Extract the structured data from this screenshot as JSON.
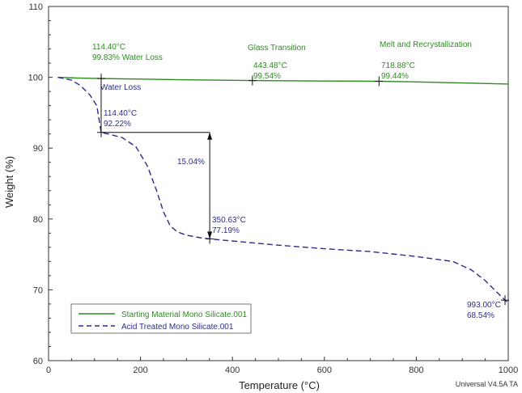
{
  "chart_data": {
    "type": "line",
    "xlabel": "Temperature (°C)",
    "ylabel": "Weight (%)",
    "xlim": [
      0,
      1000
    ],
    "ylim": [
      60,
      110
    ],
    "x_ticks": [
      "0",
      "200",
      "400",
      "600",
      "800",
      "1000"
    ],
    "y_ticks": [
      "60",
      "70",
      "80",
      "90",
      "100",
      "110"
    ],
    "grid": false,
    "legend_position": "bottom-left",
    "series": [
      {
        "name": "Starting Material Mono Silicate.001",
        "color": "#2e8b22",
        "style": "solid",
        "x": [
          20,
          60,
          114.4,
          200,
          300,
          443.48,
          500,
          600,
          718.88,
          800,
          900,
          1000
        ],
        "y": [
          100.0,
          99.9,
          99.83,
          99.75,
          99.65,
          99.54,
          99.52,
          99.48,
          99.44,
          99.35,
          99.2,
          99.05
        ]
      },
      {
        "name": "Acid Treated Mono Silicate.001",
        "color": "#2c2c8a",
        "style": "dashed",
        "x": [
          20,
          50,
          70,
          90,
          105,
          114.4,
          130,
          160,
          190,
          215,
          235,
          250,
          265,
          280,
          300,
          330,
          350.63,
          400,
          500,
          600,
          700,
          800,
          880,
          920,
          950,
          970,
          993,
          1000
        ],
        "y": [
          100.0,
          99.6,
          98.8,
          97.5,
          96.0,
          92.22,
          92.0,
          91.5,
          90.2,
          87.5,
          84.0,
          81.0,
          79.0,
          78.2,
          77.7,
          77.35,
          77.19,
          76.9,
          76.3,
          75.8,
          75.4,
          74.7,
          74.0,
          72.8,
          71.3,
          70.0,
          68.54,
          68.2
        ]
      }
    ],
    "annotations": {
      "green_1": [
        "114.40°C",
        "99.83% Water Loss"
      ],
      "green_2": [
        "443.48°C",
        "99.54%"
      ],
      "green_3": [
        "718.88°C",
        "99.44%"
      ],
      "green_label_2": "Glass Transition",
      "green_label_3": "Melt and Recrystallization",
      "blue_water_loss": "Water Loss",
      "blue_1": [
        "114.40°C",
        "92.22%"
      ],
      "blue_2": [
        "350.63°C",
        "77.19%"
      ],
      "blue_3": [
        "993.00°C",
        "68.54%"
      ],
      "step_change": "15.04%",
      "step_x_start": 114.4,
      "step_x_end": 350.63,
      "step_y_top": 92.22,
      "step_y_bottom": 77.19
    },
    "credit": "Universal V4.5A TA"
  }
}
